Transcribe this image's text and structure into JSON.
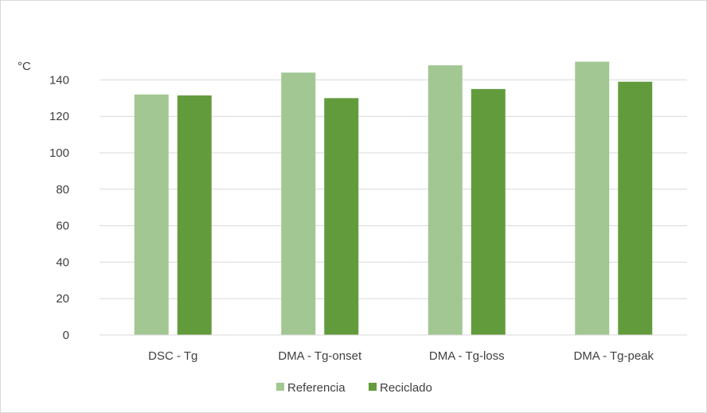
{
  "chart_data": {
    "type": "bar",
    "categories": [
      "DSC - Tg",
      "DMA - Tg-onset",
      "DMA - Tg-loss",
      "DMA - Tg-peak"
    ],
    "series": [
      {
        "name": "Referencia",
        "values": [
          132,
          144,
          148,
          150
        ],
        "color": "#a2c793"
      },
      {
        "name": "Reciclado",
        "values": [
          131.5,
          130,
          135,
          139
        ],
        "color": "#629b3c"
      }
    ],
    "ylabel": "°C",
    "ylim": [
      0,
      150
    ],
    "yticks": [
      0,
      20,
      40,
      60,
      80,
      100,
      120,
      140
    ],
    "grid": true,
    "legend_position": "bottom"
  }
}
